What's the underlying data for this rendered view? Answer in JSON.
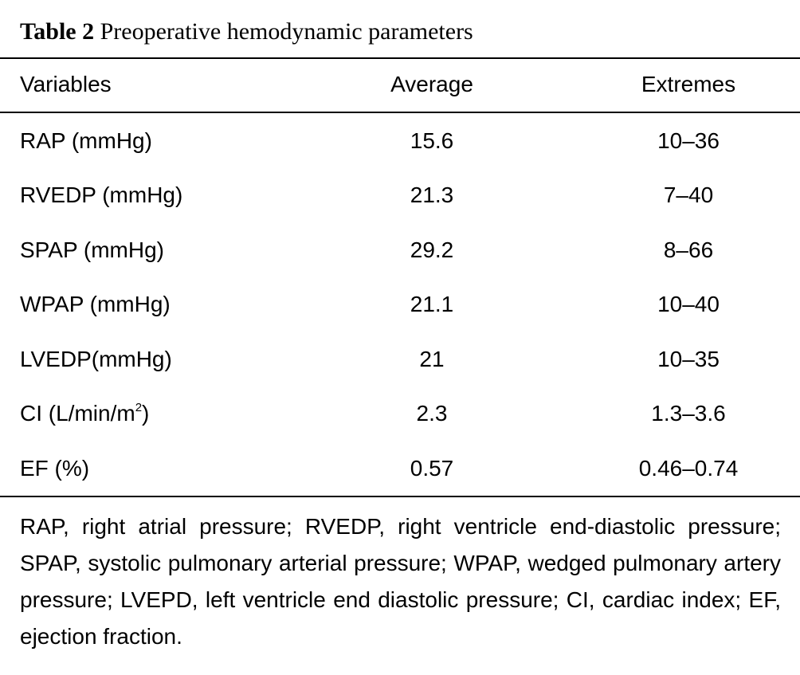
{
  "caption": {
    "label": "Table 2",
    "title": "Preoperative hemodynamic parameters"
  },
  "headers": [
    "Variables",
    "Average",
    "Extremes"
  ],
  "rows": [
    {
      "variable": "RAP (mmHg)",
      "average": "15.6",
      "extremes": "10–36"
    },
    {
      "variable": "RVEDP (mmHg)",
      "average": "21.3",
      "extremes": "7–40"
    },
    {
      "variable": "SPAP (mmHg)",
      "average": "29.2",
      "extremes": "8–66"
    },
    {
      "variable": "WPAP (mmHg)",
      "average": "21.1",
      "extremes": "10–40"
    },
    {
      "variable": "LVEDP(mmHg)",
      "average": "21",
      "extremes": "10–35"
    },
    {
      "variable": "CI (L/min/m",
      "variable_sup": "2",
      "variable_suffix": ")",
      "average": "2.3",
      "extremes": "1.3–3.6"
    },
    {
      "variable": "EF (%)",
      "average": "0.57",
      "extremes": "0.46–0.74"
    }
  ],
  "footnote": "RAP, right atrial pressure; RVEDP, right ventricle end-diastolic pressure; SPAP, systolic pulmonary arterial pressure; WPAP, wedged pulmonary artery pressure; LVEPD, left ventricle end diastolic pressure; CI, cardiac index; EF, ejection fraction."
}
